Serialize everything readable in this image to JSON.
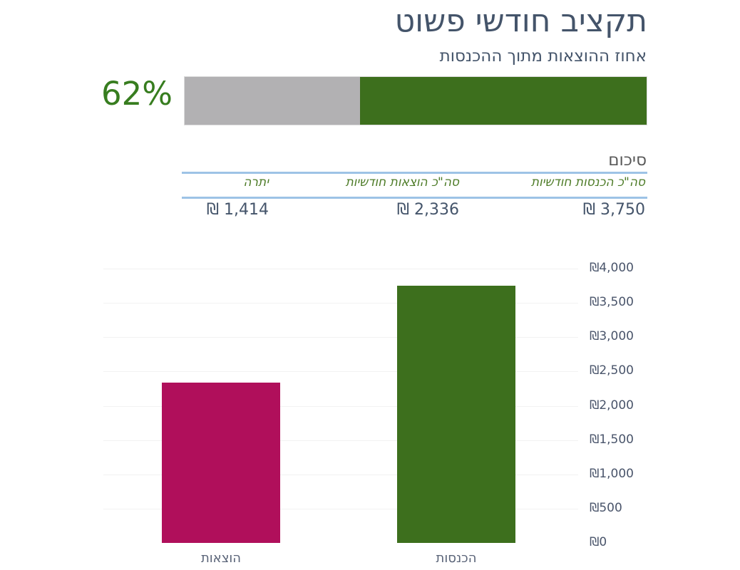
{
  "title": "תקציב חודשי פשוט",
  "progress": {
    "subtitle": "אחוז ההוצאות מתוך ההכנסות",
    "percent": 62,
    "percent_label": "62%",
    "label_color": "#377D1F",
    "fill_color": "#3D6F1D",
    "track_color": "#B2B1B3"
  },
  "summary": {
    "heading": "סיכום",
    "accent_line_color": "#9DC3E6",
    "header_color": "#4E7C28",
    "value_color": "#44546A",
    "columns": [
      {
        "id": "income",
        "header": "סה\"כ הכנסות חודשיות",
        "value": "₪ 3,750"
      },
      {
        "id": "expenses",
        "header": "סה\"כ הוצאות חודשיות",
        "value": "₪ 2,336"
      },
      {
        "id": "balance",
        "header": "יתרה",
        "value": "₪ 1,414"
      }
    ]
  },
  "chart_data": {
    "type": "bar",
    "categories": [
      "הוצאות",
      "הכנסות"
    ],
    "values": [
      2336,
      3750
    ],
    "colors": [
      "#B00F5B",
      "#3D6F1D"
    ],
    "title": "",
    "xlabel": "",
    "ylabel": "",
    "ylim": [
      0,
      4000
    ],
    "ytick_step": 500,
    "ytick_labels": [
      "₪0",
      "₪500",
      "₪1,000",
      "₪1,500",
      "₪2,000",
      "₪2,500",
      "₪3,000",
      "₪3,500",
      "₪4,000"
    ],
    "axis_side": "right",
    "grid": true,
    "grid_color": "#F2F2F2",
    "tick_color": "#4A556B",
    "category_color": "#5A6478"
  }
}
